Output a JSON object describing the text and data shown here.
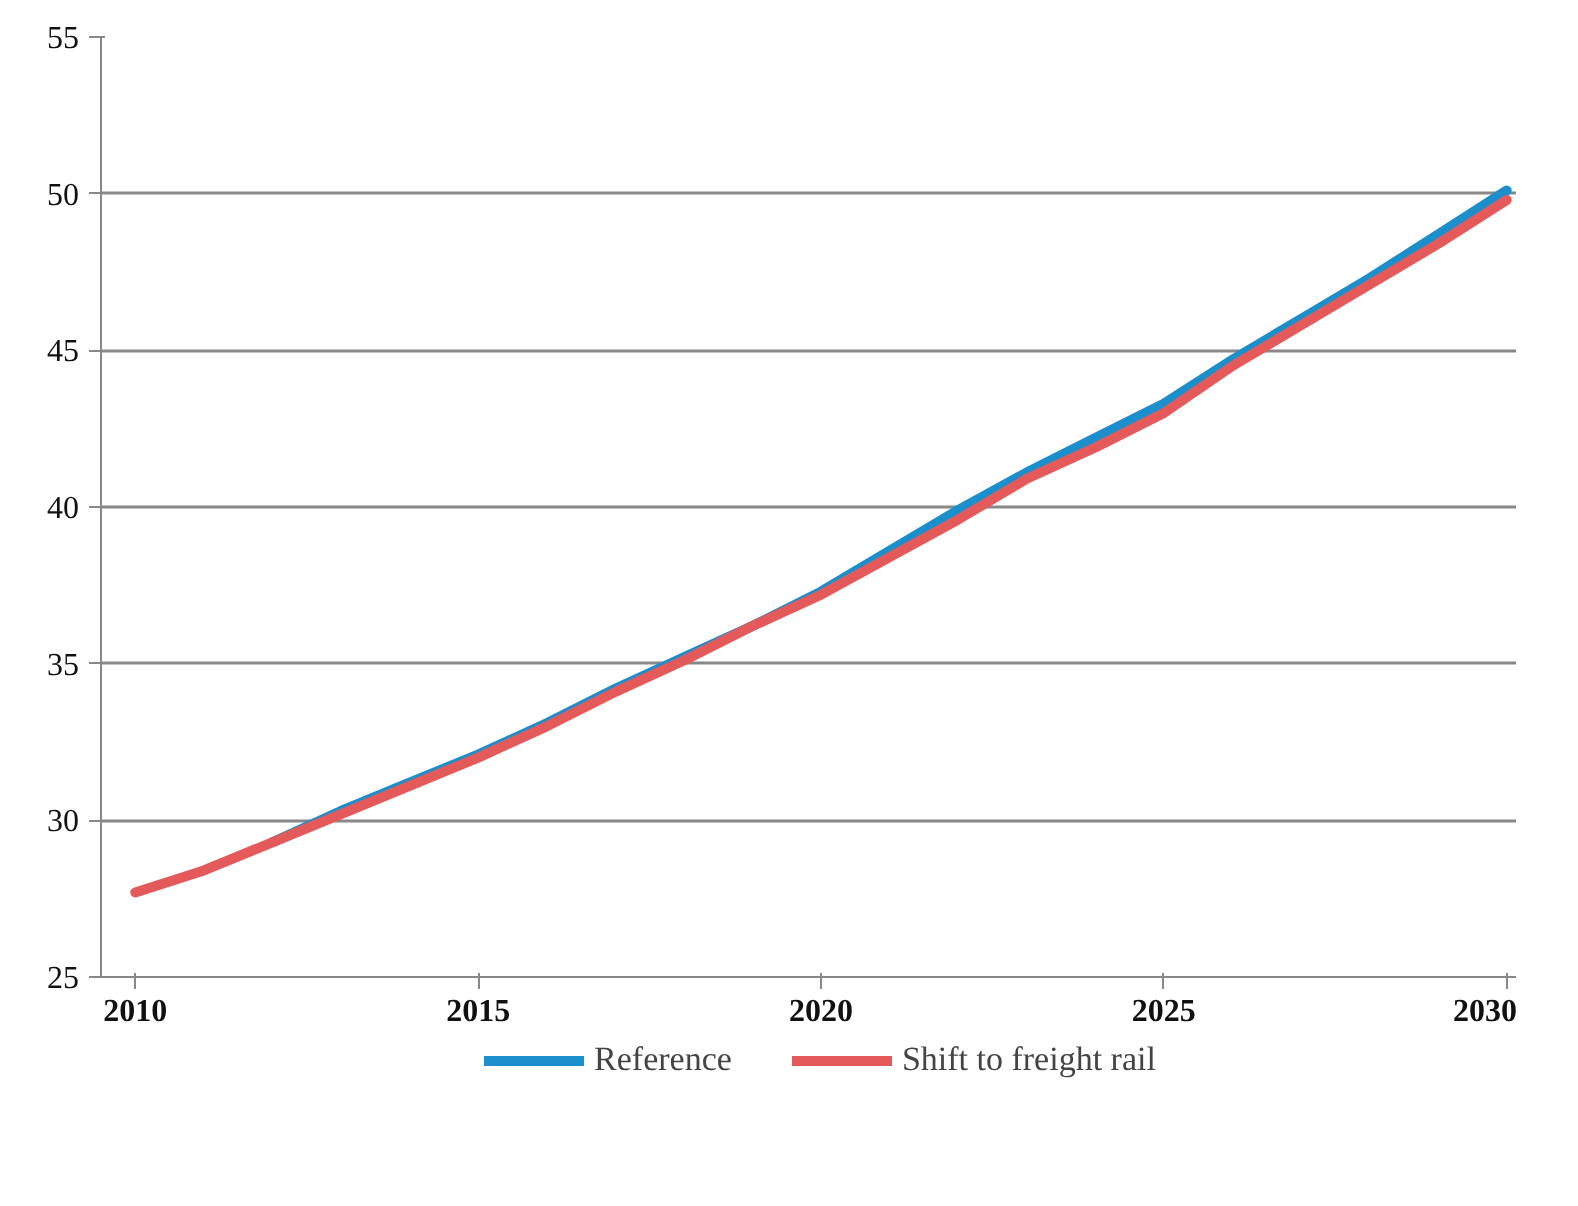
{
  "chart_data": {
    "type": "line",
    "x": [
      2010,
      2011,
      2012,
      2013,
      2014,
      2015,
      2016,
      2017,
      2018,
      2019,
      2020,
      2021,
      2022,
      2023,
      2024,
      2025,
      2026,
      2027,
      2028,
      2029,
      2030
    ],
    "series": [
      {
        "name": "Reference",
        "color": "#1a8fcc",
        "values": [
          null,
          null,
          29.3,
          30.3,
          31.2,
          32.1,
          33.1,
          34.2,
          35.2,
          36.2,
          37.3,
          38.6,
          39.9,
          41.1,
          42.2,
          43.3,
          44.7,
          46.0,
          47.3,
          48.7,
          50.1
        ]
      },
      {
        "name": "Shift to freight rail",
        "color": "#e45a5a",
        "values": [
          27.7,
          28.4,
          29.3,
          30.2,
          31.1,
          32.0,
          33.0,
          34.1,
          35.1,
          36.2,
          37.2,
          38.4,
          39.6,
          40.9,
          41.9,
          43.0,
          44.5,
          45.8,
          47.1,
          48.4,
          49.8
        ]
      }
    ],
    "xlim": [
      2009.5,
      2030.5
    ],
    "xticks": [
      {
        "value": 2010,
        "label": "2010"
      },
      {
        "value": 2015,
        "label": "2015"
      },
      {
        "value": 2020,
        "label": "2020"
      },
      {
        "value": 2025,
        "label": "2025"
      },
      {
        "value": 2030,
        "label": "2030"
      }
    ],
    "ylim": [
      25,
      55
    ],
    "yticks": [
      25,
      30,
      35,
      40,
      45,
      50,
      55
    ],
    "grid": "y",
    "legend": "bottom",
    "marker": "none",
    "line_style": "solid"
  }
}
